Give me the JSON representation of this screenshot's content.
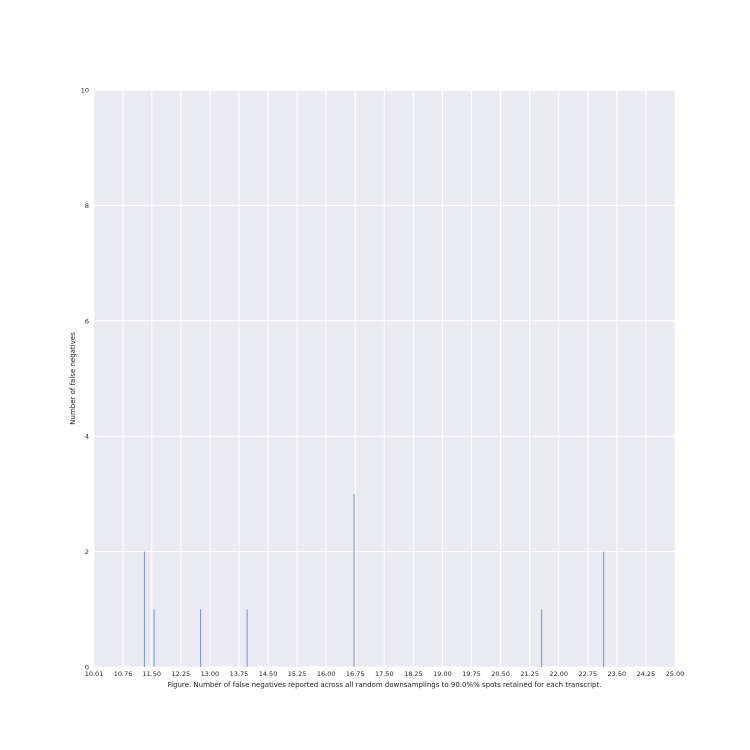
{
  "chart_data": {
    "type": "bar",
    "title": "",
    "xlabel": "Figure. Number of false negatives reported across all random downsamplings to 90.0%% spots retained for each transcript.",
    "ylabel": "Number of false negatives",
    "xlim": [
      10.01,
      25.0
    ],
    "ylim": [
      0,
      10
    ],
    "x_tick_labels": [
      "10.01",
      "10.76",
      "11.50",
      "12.25",
      "13.00",
      "13.75",
      "14.50",
      "15.25",
      "16.00",
      "16.75",
      "17.50",
      "18.25",
      "19.00",
      "19.75",
      "20.50",
      "21.25",
      "22.00",
      "22.75",
      "23.50",
      "24.25",
      "25.00"
    ],
    "y_tick_labels": [
      "0",
      "2",
      "4",
      "6",
      "8",
      "10"
    ],
    "grid": true,
    "legend": "none",
    "series": [
      {
        "color": "#7b8fd0",
        "points": [
          {
            "x": 11.31,
            "y": 2
          },
          {
            "x": 11.56,
            "y": 1
          },
          {
            "x": 12.76,
            "y": 1
          },
          {
            "x": 13.96,
            "y": 1
          },
          {
            "x": 16.72,
            "y": 3
          },
          {
            "x": 21.56,
            "y": 1
          },
          {
            "x": 23.16,
            "y": 2
          }
        ]
      }
    ],
    "background_color": "#eaeaf2",
    "grid_color": "#ffffff"
  }
}
